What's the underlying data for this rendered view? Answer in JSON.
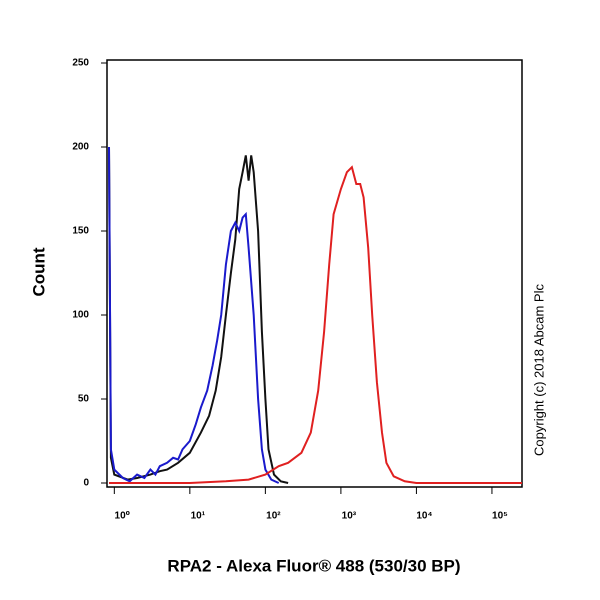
{
  "chart_data": {
    "type": "line",
    "xlabel": "RPA2 - Alexa Fluor® 488 (530/30 BP)",
    "ylabel": "Count",
    "annotation": "Copyright (c) 2018 Abcam Plc",
    "xscale": "log",
    "xlim": [
      0.8,
      250000
    ],
    "ylim": [
      0,
      250
    ],
    "xticks": [
      {
        "value": 1,
        "label": "10⁰"
      },
      {
        "value": 10,
        "label": "10¹"
      },
      {
        "value": 100,
        "label": "10²"
      },
      {
        "value": 1000,
        "label": "10³"
      },
      {
        "value": 10000,
        "label": "10⁴"
      },
      {
        "value": 100000,
        "label": "10⁵"
      }
    ],
    "yticks": [
      0,
      50,
      100,
      150,
      200,
      250
    ],
    "series": [
      {
        "color": "#111111",
        "x": [
          0.85,
          0.9,
          1,
          1.5,
          2,
          3,
          4,
          5,
          7,
          10,
          14,
          18,
          22,
          26,
          30,
          35,
          40,
          45,
          50,
          55,
          60,
          65,
          70,
          80,
          90,
          100,
          110,
          130,
          160,
          200
        ],
        "values": [
          200,
          15,
          5,
          2,
          3,
          5,
          7,
          8,
          12,
          18,
          30,
          40,
          55,
          75,
          100,
          125,
          145,
          175,
          185,
          195,
          180,
          195,
          185,
          150,
          90,
          50,
          20,
          5,
          1,
          0
        ]
      },
      {
        "color": "#1a1acc",
        "x": [
          0.85,
          0.9,
          1,
          1.3,
          1.6,
          2,
          2.5,
          3,
          3.5,
          4,
          5,
          6,
          7,
          8,
          10,
          12,
          14,
          17,
          20,
          23,
          26,
          30,
          35,
          40,
          45,
          50,
          55,
          60,
          70,
          80,
          90,
          100,
          120,
          150
        ],
        "values": [
          200,
          20,
          8,
          3,
          1,
          5,
          3,
          8,
          5,
          10,
          12,
          15,
          14,
          20,
          25,
          35,
          45,
          55,
          70,
          85,
          100,
          130,
          150,
          155,
          150,
          158,
          160,
          140,
          100,
          50,
          20,
          8,
          2,
          0
        ]
      },
      {
        "color": "#e02020",
        "x": [
          0.85,
          10,
          30,
          60,
          100,
          150,
          200,
          300,
          400,
          500,
          600,
          700,
          800,
          1000,
          1200,
          1400,
          1600,
          1800,
          2000,
          2300,
          2600,
          3000,
          3500,
          4000,
          5000,
          7000,
          10000,
          250000
        ],
        "values": [
          0,
          0,
          1,
          2,
          5,
          10,
          12,
          18,
          30,
          55,
          90,
          130,
          160,
          175,
          185,
          188,
          178,
          178,
          170,
          140,
          100,
          60,
          30,
          12,
          4,
          1,
          0,
          0
        ]
      }
    ]
  }
}
